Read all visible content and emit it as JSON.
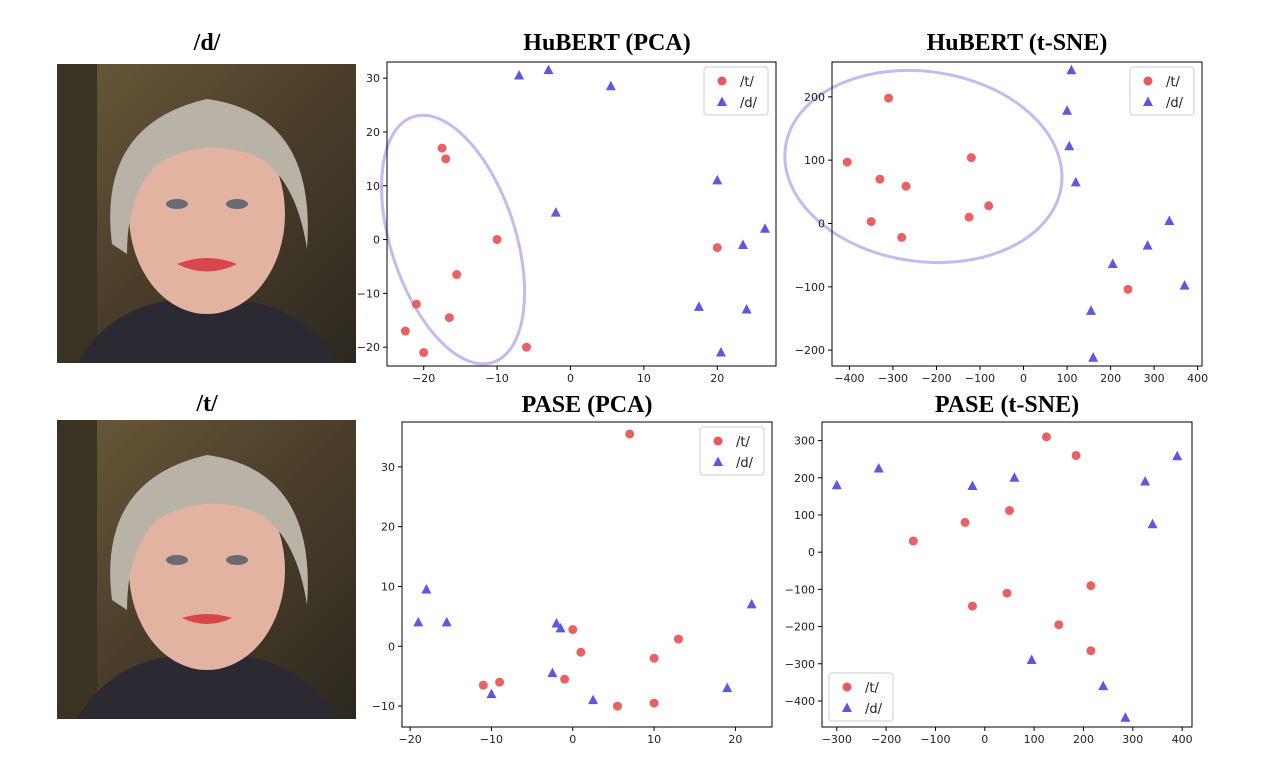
{
  "photos": [
    {
      "title": "/d/"
    },
    {
      "title": "/t/"
    }
  ],
  "colors": {
    "t": "#e8585a",
    "d": "#5a5ae0",
    "ellipse": "#c8b8f0"
  },
  "chart_data": [
    {
      "type": "scatter",
      "title": "HuBERT (PCA)",
      "xlim": [
        -25,
        28
      ],
      "ylim": [
        -23.5,
        33
      ],
      "xticks": [
        -20,
        -10,
        0,
        10,
        20
      ],
      "yticks": [
        -20,
        -10,
        0,
        10,
        20,
        30
      ],
      "legend": "top-right",
      "series": [
        {
          "name": "/t/",
          "marker": "circle",
          "points": [
            [
              -17.5,
              17
            ],
            [
              -17,
              15
            ],
            [
              -10,
              0
            ],
            [
              -15.5,
              -6.5
            ],
            [
              -21,
              -12
            ],
            [
              -16.5,
              -14.5
            ],
            [
              -22.5,
              -17
            ],
            [
              -20,
              -21
            ],
            [
              -6,
              -20
            ],
            [
              20,
              -1.5
            ]
          ]
        },
        {
          "name": "/d/",
          "marker": "triangle",
          "points": [
            [
              -7,
              30.5
            ],
            [
              -3,
              31.5
            ],
            [
              5.5,
              28.5
            ],
            [
              -2,
              5
            ],
            [
              20,
              11
            ],
            [
              23.5,
              -1
            ],
            [
              26.5,
              2
            ],
            [
              17.5,
              -12.5
            ],
            [
              24,
              -13
            ],
            [
              20.5,
              -21
            ]
          ]
        }
      ],
      "ellipse": {
        "cx": -16,
        "cy": 0,
        "rx": 8.5,
        "ry": 24,
        "angle": -18
      }
    },
    {
      "type": "scatter",
      "title": "HuBERT (t-SNE)",
      "xlim": [
        -440,
        410
      ],
      "ylim": [
        -225,
        255
      ],
      "xticks": [
        -400,
        -300,
        -200,
        -100,
        0,
        100,
        200,
        300,
        400
      ],
      "yticks": [
        -200,
        -100,
        0,
        100,
        200
      ],
      "legend": "top-right",
      "series": [
        {
          "name": "/t/",
          "marker": "circle",
          "points": [
            [
              -405,
              97
            ],
            [
              -310,
              198
            ],
            [
              -330,
              70
            ],
            [
              -270,
              59
            ],
            [
              -350,
              3
            ],
            [
              -280,
              -22
            ],
            [
              -120,
              104
            ],
            [
              -125,
              10
            ],
            [
              -80,
              28
            ],
            [
              240,
              -104
            ]
          ]
        },
        {
          "name": "/d/",
          "marker": "triangle",
          "points": [
            [
              110,
              242
            ],
            [
              100,
              178
            ],
            [
              105,
              122
            ],
            [
              120,
              65
            ],
            [
              335,
              4
            ],
            [
              285,
              -35
            ],
            [
              205,
              -64
            ],
            [
              370,
              -98
            ],
            [
              155,
              -138
            ],
            [
              160,
              -212
            ]
          ]
        }
      ],
      "ellipse": {
        "cx": -230,
        "cy": 90,
        "rx": 320,
        "ry": 150,
        "angle": 8
      }
    },
    {
      "type": "scatter",
      "title": "PASE (PCA)",
      "xlim": [
        -21,
        24.5
      ],
      "ylim": [
        -13.5,
        37.5
      ],
      "xticks": [
        -20,
        -10,
        0,
        10,
        20
      ],
      "yticks": [
        -10,
        0,
        10,
        20,
        30
      ],
      "legend": "top-right",
      "series": [
        {
          "name": "/t/",
          "marker": "circle",
          "points": [
            [
              7,
              35.5
            ],
            [
              0,
              2.8
            ],
            [
              1,
              -1
            ],
            [
              10,
              -2
            ],
            [
              13,
              1.2
            ],
            [
              -1,
              -5.5
            ],
            [
              -9,
              -6
            ],
            [
              -11,
              -6.5
            ],
            [
              5.5,
              -10
            ],
            [
              10,
              -9.5
            ]
          ]
        },
        {
          "name": "/d/",
          "marker": "triangle",
          "points": [
            [
              -18,
              9.5
            ],
            [
              -19,
              4
            ],
            [
              -15.5,
              4
            ],
            [
              -2,
              3.8
            ],
            [
              -1.5,
              3
            ],
            [
              22,
              7
            ],
            [
              -2.5,
              -4.5
            ],
            [
              -10,
              -8
            ],
            [
              2.5,
              -9
            ],
            [
              19,
              -7
            ]
          ]
        }
      ]
    },
    {
      "type": "scatter",
      "title": "PASE (t-SNE)",
      "xlim": [
        -330,
        420
      ],
      "ylim": [
        -470,
        350
      ],
      "xticks": [
        -300,
        -200,
        -100,
        0,
        100,
        200,
        300,
        400
      ],
      "yticks": [
        -400,
        -300,
        -200,
        -100,
        0,
        100,
        200,
        300
      ],
      "legend": "bottom-left",
      "series": [
        {
          "name": "/t/",
          "marker": "circle",
          "points": [
            [
              125,
              310
            ],
            [
              185,
              260
            ],
            [
              -40,
              80
            ],
            [
              50,
              112
            ],
            [
              -145,
              30
            ],
            [
              -25,
              -145
            ],
            [
              45,
              -110
            ],
            [
              215,
              -90
            ],
            [
              150,
              -195
            ],
            [
              215,
              -265
            ]
          ]
        },
        {
          "name": "/d/",
          "marker": "triangle",
          "points": [
            [
              -300,
              180
            ],
            [
              -215,
              225
            ],
            [
              -25,
              178
            ],
            [
              60,
              200
            ],
            [
              390,
              258
            ],
            [
              325,
              190
            ],
            [
              340,
              75
            ],
            [
              95,
              -290
            ],
            [
              240,
              -360
            ],
            [
              285,
              -445
            ]
          ]
        }
      ]
    }
  ]
}
